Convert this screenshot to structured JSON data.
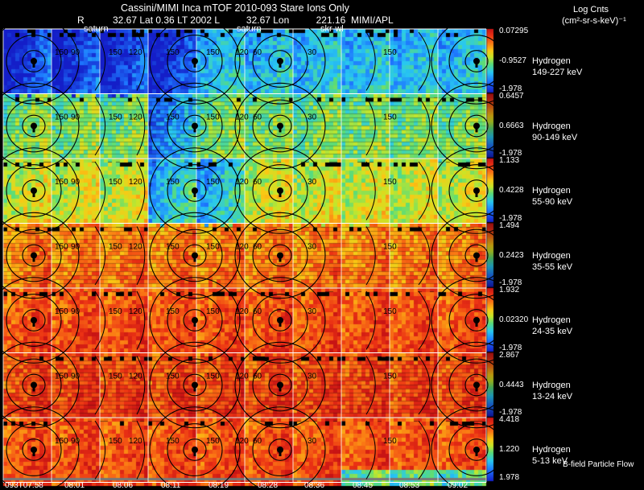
{
  "header": {
    "title": "Cassini/MIMI Inca mTOF  2010-093   Stare    Ions Only",
    "r_label": "R",
    "ephemeris": "32.67 Lat 0.36 LT 2002 L          32.67 Lon          221.16  MIMI/APL",
    "saturn_labels": [
      "saturn",
      "saturn"
    ],
    "skr_label": "skr-wl",
    "legend_title": "Log Cnts",
    "legend_units": "(cm²-sr-s-keV)⁻¹"
  },
  "footer": {
    "bfield_label": "B-field Particle Flow",
    "times": [
      "093T07:58",
      "08:01",
      "08:06",
      "08:11",
      "08:19",
      "08:28",
      "08:36",
      "08:45",
      "08:53",
      "09:02"
    ]
  },
  "colors": {
    "background": "#000000",
    "contour": "#000000",
    "grid": "#ffffff"
  },
  "chart_data": {
    "type": "heatmap",
    "title": "Cassini/MIMI Inca mTOF 2010-093 Stare Ions Only",
    "colormap": "rainbow (blue-cyan-green-yellow-orange-red)",
    "contour_labels": [
      "150",
      "120",
      "90",
      "60",
      "30"
    ],
    "frames": 10,
    "rows": [
      {
        "species": "Hydrogen",
        "energy": "149-227 keV",
        "cb_max": "0.07295",
        "cb_mid": "-0.9527",
        "cb_min": "-1.978",
        "level": 0.25,
        "low_frames": [
          0,
          1,
          2,
          3
        ]
      },
      {
        "species": "Hydrogen",
        "energy": "90-149 keV",
        "cb_max": "0.6457",
        "cb_mid": "0.6663",
        "cb_min": "-1.978",
        "level": 0.42,
        "low_frames": [
          3
        ]
      },
      {
        "species": "Hydrogen",
        "energy": "55-90 keV",
        "cb_max": "1.133",
        "cb_mid": "0.4228",
        "cb_min": "-1.978",
        "level": 0.52,
        "low_frames": [
          3,
          4
        ]
      },
      {
        "species": "Hydrogen",
        "energy": "35-55 keV",
        "cb_max": "1.494",
        "cb_mid": "0.2423",
        "cb_min": "-1.978",
        "level": 0.72,
        "low_frames": []
      },
      {
        "species": "Hydrogen",
        "energy": "24-35 keV",
        "cb_max": "1.932",
        "cb_mid": "0.02320",
        "cb_min": "-1.978",
        "level": 0.8,
        "low_frames": []
      },
      {
        "species": "Hydrogen",
        "energy": "13-24 keV",
        "cb_max": "2.867",
        "cb_mid": "0.4443",
        "cb_min": "-1.978",
        "level": 0.82,
        "low_frames": []
      },
      {
        "species": "Hydrogen",
        "energy": "5-13 keV",
        "cb_max": "4.418",
        "cb_mid": "1.220",
        "cb_min": "1.978",
        "level": 0.8,
        "low_frames": []
      }
    ]
  }
}
